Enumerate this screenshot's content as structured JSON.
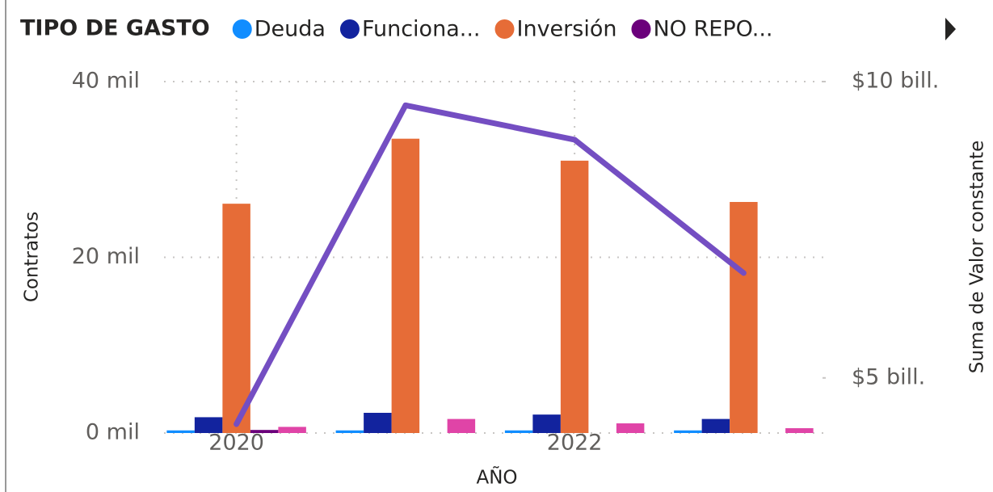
{
  "chart_data": {
    "type": "bar-line",
    "legend_title": "TIPO DE GASTO",
    "x_label": "AÑO",
    "y_label": "Contratos",
    "y2_label": "Suma de Valor constante",
    "categories": [
      "2020",
      null,
      "2022",
      null
    ],
    "series": [
      {
        "name": "Deuda",
        "color": "#118DFF",
        "values": [
          300,
          300,
          300,
          300
        ]
      },
      {
        "name": "Funciona...",
        "color": "#12239E",
        "values": [
          1800,
          2300,
          2100,
          1600
        ]
      },
      {
        "name": "Inversión",
        "color": "#E66C37",
        "values": [
          26100,
          33500,
          31000,
          26300
        ]
      },
      {
        "name": "NO REPO...",
        "color": "#6B007B",
        "values": [
          350,
          null,
          null,
          null
        ]
      },
      {
        "color": "#E044A7",
        "values": [
          700,
          1600,
          1100,
          550
        ]
      }
    ],
    "line": {
      "color": "#744EC2",
      "axis": "y2",
      "values": [
        4220000000000,
        9600000000000,
        9020000000000,
        6770000000000
      ]
    },
    "ylim": [
      0,
      40000
    ],
    "yticks": [
      {
        "value": 0,
        "label": "0 mil"
      },
      {
        "value": 20000,
        "label": "20 mil"
      },
      {
        "value": 40000,
        "label": "40 mil"
      }
    ],
    "y2lim": [
      4070000000000,
      10000000000000
    ],
    "y2ticks": [
      {
        "value": 5000000000000,
        "label": "$5 bill."
      },
      {
        "value": 10000000000000,
        "label": "$10 bill."
      }
    ],
    "grid": true
  }
}
